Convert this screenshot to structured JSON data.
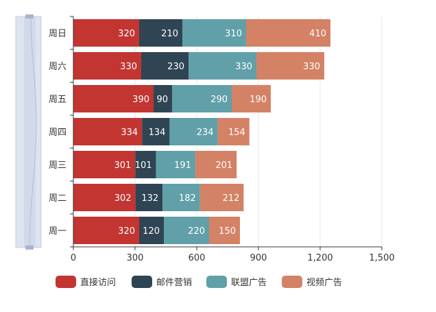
{
  "chart_data": {
    "type": "bar",
    "orientation": "horizontal",
    "stacked": true,
    "title": "",
    "xlabel": "",
    "ylabel": "",
    "xlim": [
      0,
      1500
    ],
    "x_ticks": [
      0,
      300,
      600,
      900,
      1200,
      1500
    ],
    "x_tick_labels": [
      "0",
      "300",
      "600",
      "900",
      "1,200",
      "1,500"
    ],
    "grid": true,
    "legend_position": "bottom",
    "categories": [
      "周一",
      "周二",
      "周三",
      "周四",
      "周五",
      "周六",
      "周日"
    ],
    "series": [
      {
        "name": "直接访问",
        "color": "#c23531",
        "values": [
          320,
          302,
          301,
          334,
          390,
          330,
          320
        ]
      },
      {
        "name": "邮件营销",
        "color": "#2f4554",
        "values": [
          120,
          132,
          101,
          134,
          90,
          230,
          210
        ]
      },
      {
        "name": "联盟广告",
        "color": "#61a0a8",
        "values": [
          220,
          182,
          191,
          234,
          290,
          330,
          310
        ]
      },
      {
        "name": "视频广告",
        "color": "#d48265",
        "values": [
          150,
          212,
          201,
          154,
          190,
          330,
          410
        ]
      }
    ]
  },
  "datazoom": {
    "orientation": "vertical",
    "start_percent": 0,
    "end_percent": 100
  }
}
